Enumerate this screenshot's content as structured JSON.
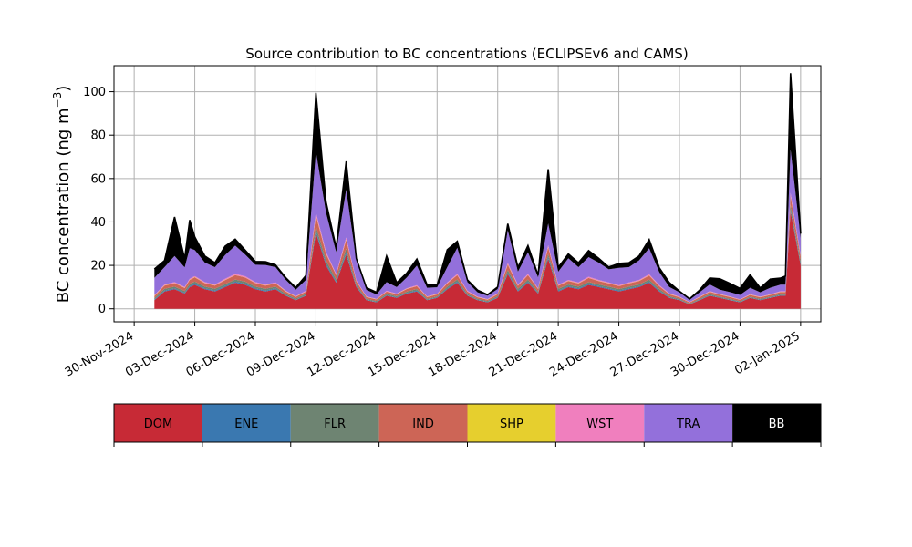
{
  "chart_data": {
    "type": "area",
    "stacked": true,
    "title": "Source contribution to BC concentrations (ECLIPSEv6 and CAMS)",
    "ylabel_main": "BC concentration (ng m",
    "ylabel_exp": "−3",
    "ylabel_close": ")",
    "xlim": [
      "2024-11-29",
      "2025-01-03"
    ],
    "ylim": [
      -6,
      112
    ],
    "yticks": [
      0,
      20,
      40,
      60,
      80,
      100
    ],
    "xticks": [
      "30-Nov-2024",
      "03-Dec-2024",
      "06-Dec-2024",
      "09-Dec-2024",
      "12-Dec-2024",
      "15-Dec-2024",
      "18-Dec-2024",
      "21-Dec-2024",
      "24-Dec-2024",
      "27-Dec-2024",
      "30-Dec-2024",
      "02-Jan-2025"
    ],
    "xtick_dates": [
      "2024-11-30",
      "2024-12-03",
      "2024-12-06",
      "2024-12-09",
      "2024-12-12",
      "2024-12-15",
      "2024-12-18",
      "2024-12-21",
      "2024-12-24",
      "2024-12-27",
      "2024-12-30",
      "2025-01-02"
    ],
    "grid": true,
    "legend_placement": "below",
    "series_order": [
      "DOM",
      "ENE",
      "FLR",
      "IND",
      "SHP",
      "WST",
      "TRA",
      "BB"
    ],
    "colors": {
      "DOM": "#c72a36",
      "ENE": "#3a78b0",
      "FLR": "#6e8472",
      "IND": "#cd6556",
      "SHP": "#e6cf2e",
      "WST": "#f07fbe",
      "TRA": "#9370db",
      "BB": "#000000"
    },
    "x": [
      "2024-12-01",
      "2024-12-01T12:00",
      "2024-12-02",
      "2024-12-02T12:00",
      "2024-12-02T18:00",
      "2024-12-03",
      "2024-12-03T12:00",
      "2024-12-04",
      "2024-12-04T12:00",
      "2024-12-05",
      "2024-12-05T12:00",
      "2024-12-06",
      "2024-12-06T12:00",
      "2024-12-07",
      "2024-12-07T12:00",
      "2024-12-08",
      "2024-12-08T12:00",
      "2024-12-09",
      "2024-12-09T12:00",
      "2024-12-10",
      "2024-12-10T12:00",
      "2024-12-11",
      "2024-12-11T12:00",
      "2024-12-12",
      "2024-12-12T12:00",
      "2024-12-13",
      "2024-12-13T12:00",
      "2024-12-14",
      "2024-12-14T12:00",
      "2024-12-15",
      "2024-12-15T12:00",
      "2024-12-16",
      "2024-12-16T12:00",
      "2024-12-17",
      "2024-12-17T12:00",
      "2024-12-18",
      "2024-12-18T12:00",
      "2024-12-19",
      "2024-12-19T12:00",
      "2024-12-20",
      "2024-12-20T12:00",
      "2024-12-21",
      "2024-12-21T12:00",
      "2024-12-22",
      "2024-12-22T12:00",
      "2024-12-23",
      "2024-12-23T12:00",
      "2024-12-24",
      "2024-12-24T12:00",
      "2024-12-25",
      "2024-12-25T12:00",
      "2024-12-26",
      "2024-12-26T12:00",
      "2024-12-27",
      "2024-12-27T12:00",
      "2024-12-28",
      "2024-12-28T12:00",
      "2024-12-29",
      "2024-12-29T12:00",
      "2024-12-30",
      "2024-12-30T12:00",
      "2024-12-31",
      "2024-12-31T12:00",
      "2025-01-01",
      "2025-01-01T06:00",
      "2025-01-01T12:00",
      "2025-01-02"
    ],
    "series": [
      {
        "name": "DOM",
        "values": [
          4,
          8,
          9,
          7,
          10,
          11,
          9,
          8,
          10,
          12,
          11,
          9,
          8,
          9,
          6,
          4,
          6,
          35,
          20,
          12,
          25,
          10,
          4,
          3,
          6,
          5,
          7,
          8,
          4,
          5,
          9,
          12,
          6,
          4,
          3,
          5,
          16,
          8,
          12,
          7,
          23,
          8,
          10,
          9,
          11,
          10,
          9,
          8,
          9,
          10,
          12,
          8,
          5,
          4,
          2,
          4,
          6,
          5,
          4,
          3,
          5,
          4,
          5,
          6,
          6,
          45,
          20
        ]
      },
      {
        "name": "ENE",
        "values": [
          0.3,
          0.4,
          0.4,
          0.4,
          0.5,
          0.5,
          0.4,
          0.4,
          0.5,
          0.5,
          0.5,
          0.4,
          0.4,
          0.4,
          0.3,
          0.2,
          0.3,
          1.0,
          0.8,
          0.5,
          0.9,
          0.4,
          0.2,
          0.2,
          0.3,
          0.3,
          0.3,
          0.4,
          0.2,
          0.2,
          0.4,
          0.5,
          0.3,
          0.2,
          0.2,
          0.3,
          0.6,
          0.4,
          0.5,
          0.3,
          0.8,
          0.4,
          0.4,
          0.4,
          0.5,
          0.4,
          0.4,
          0.4,
          0.4,
          0.4,
          0.5,
          0.4,
          0.3,
          0.2,
          0.1,
          0.2,
          0.3,
          0.2,
          0.2,
          0.2,
          0.2,
          0.2,
          0.2,
          0.3,
          0.3,
          1.0,
          0.6
        ]
      },
      {
        "name": "FLR",
        "values": [
          0.6,
          0.8,
          0.8,
          0.8,
          1.0,
          1.0,
          0.8,
          0.8,
          0.9,
          1.0,
          1.0,
          0.8,
          0.8,
          0.8,
          0.6,
          0.5,
          0.6,
          2.0,
          1.5,
          1.0,
          1.8,
          0.8,
          0.4,
          0.4,
          0.6,
          0.5,
          0.6,
          0.7,
          0.4,
          0.5,
          0.8,
          1.0,
          0.6,
          0.4,
          0.4,
          0.5,
          1.2,
          0.8,
          1.0,
          0.6,
          1.5,
          0.8,
          0.8,
          0.8,
          0.9,
          0.8,
          0.8,
          0.7,
          0.8,
          0.8,
          0.9,
          0.7,
          0.5,
          0.4,
          0.3,
          0.4,
          0.5,
          0.4,
          0.4,
          0.3,
          0.4,
          0.4,
          0.4,
          0.5,
          0.5,
          2.0,
          1.2
        ]
      },
      {
        "name": "IND",
        "values": [
          1.0,
          1.5,
          1.6,
          1.4,
          1.8,
          2.0,
          1.6,
          1.5,
          1.8,
          2.0,
          1.9,
          1.6,
          1.5,
          1.5,
          1.1,
          0.8,
          1.0,
          5.0,
          3.0,
          2.0,
          4.0,
          1.5,
          0.8,
          0.7,
          1.0,
          0.9,
          1.2,
          1.3,
          0.8,
          0.9,
          1.5,
          2.0,
          1.0,
          0.7,
          0.6,
          0.9,
          2.5,
          1.4,
          2.0,
          1.2,
          3.0,
          1.4,
          1.6,
          1.5,
          1.8,
          1.6,
          1.5,
          1.3,
          1.5,
          1.6,
          1.9,
          1.3,
          0.9,
          0.7,
          0.5,
          0.7,
          1.0,
          0.9,
          0.8,
          0.6,
          0.8,
          0.7,
          0.8,
          0.9,
          0.9,
          4.0,
          2.0
        ]
      },
      {
        "name": "SHP",
        "values": [
          0.1,
          0.1,
          0.1,
          0.1,
          0.1,
          0.1,
          0.1,
          0.1,
          0.1,
          0.1,
          0.1,
          0.1,
          0.1,
          0.1,
          0.1,
          0.1,
          0.1,
          0.3,
          0.2,
          0.1,
          0.2,
          0.1,
          0.1,
          0.1,
          0.1,
          0.1,
          0.1,
          0.1,
          0.1,
          0.1,
          0.1,
          0.1,
          0.1,
          0.1,
          0.1,
          0.1,
          0.2,
          0.1,
          0.1,
          0.1,
          0.2,
          0.1,
          0.1,
          0.1,
          0.1,
          0.1,
          0.1,
          0.1,
          0.1,
          0.1,
          0.1,
          0.1,
          0.1,
          0.1,
          0.1,
          0.1,
          0.1,
          0.1,
          0.1,
          0.1,
          0.1,
          0.1,
          0.1,
          0.1,
          0.1,
          0.3,
          0.2
        ]
      },
      {
        "name": "WST",
        "values": [
          0.3,
          0.4,
          0.4,
          0.4,
          0.5,
          0.5,
          0.4,
          0.4,
          0.5,
          0.5,
          0.5,
          0.4,
          0.4,
          0.4,
          0.3,
          0.2,
          0.3,
          1.2,
          0.8,
          0.5,
          1.0,
          0.4,
          0.2,
          0.2,
          0.3,
          0.2,
          0.3,
          0.4,
          0.2,
          0.2,
          0.4,
          0.5,
          0.3,
          0.2,
          0.2,
          0.3,
          0.7,
          0.4,
          0.5,
          0.3,
          0.8,
          0.4,
          0.4,
          0.4,
          0.5,
          0.4,
          0.4,
          0.4,
          0.4,
          0.4,
          0.5,
          0.4,
          0.3,
          0.2,
          0.1,
          0.2,
          0.3,
          0.2,
          0.2,
          0.2,
          0.2,
          0.2,
          0.2,
          0.3,
          0.3,
          1.2,
          0.6
        ]
      },
      {
        "name": "TRA",
        "values": [
          8,
          8,
          12,
          9,
          14,
          12,
          9,
          8,
          11,
          13,
          10,
          8,
          9,
          7,
          5,
          3,
          5,
          28,
          18,
          10,
          22,
          9,
          3,
          2,
          4,
          3,
          5,
          9,
          4,
          3,
          7,
          12,
          4,
          2,
          1.5,
          2,
          15,
          6,
          10,
          5,
          10,
          6,
          10,
          7,
          9,
          8,
          6,
          8,
          7,
          9,
          12,
          6,
          3,
          2,
          1,
          2,
          3,
          2,
          2,
          2,
          3,
          2,
          3,
          3,
          3,
          20,
          8
        ]
      },
      {
        "name": "BB",
        "values": [
          4,
          3,
          18,
          4,
          13,
          6,
          3,
          2,
          4,
          3,
          2,
          1.5,
          1.5,
          1,
          1,
          1,
          2,
          27,
          5,
          2,
          13,
          1,
          1,
          1,
          12,
          2,
          2,
          3,
          1.5,
          1,
          8,
          3,
          1,
          1,
          0.5,
          1,
          3,
          2,
          3,
          1,
          25,
          2,
          2,
          2,
          3,
          2,
          1,
          2,
          2,
          2,
          4,
          2,
          2,
          0.5,
          0.5,
          1,
          3,
          5,
          4,
          3,
          6,
          2,
          4,
          3,
          4,
          35,
          2
        ]
      }
    ]
  }
}
